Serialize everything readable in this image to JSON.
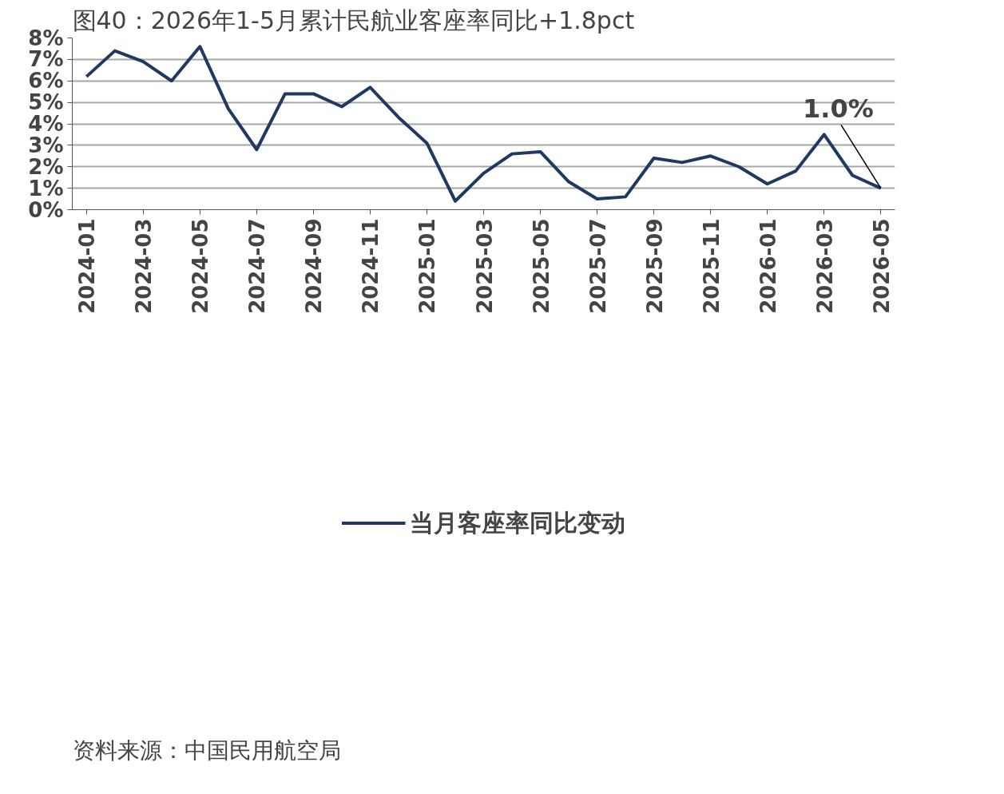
{
  "chart_data": {
    "type": "line",
    "title": "图40：2026年1-5月累计民航业客座率同比+1.8pct",
    "categories": [
      "2024-01",
      null,
      "2024-03",
      null,
      "2024-05",
      null,
      "2024-07",
      null,
      "2024-09",
      null,
      "2024-11",
      null,
      "2025-01",
      null,
      "2025-03",
      null,
      "2025-05",
      null,
      "2025-07",
      null,
      "2025-09",
      null,
      "2025-11",
      null,
      "2026-01",
      null,
      "2026-03",
      null,
      "2026-05"
    ],
    "series": [
      {
        "name": "当月客座率同比变动",
        "color": "#1f3864",
        "values": [
          6.2,
          7.4,
          6.9,
          6.0,
          7.6,
          4.7,
          2.8,
          5.4,
          5.4,
          4.8,
          5.7,
          4.3,
          3.1,
          0.4,
          1.7,
          2.6,
          2.7,
          1.3,
          0.5,
          0.6,
          2.4,
          2.2,
          2.5,
          2.0,
          1.2,
          1.8,
          3.5,
          1.6,
          1.0
        ]
      }
    ],
    "ylim": [
      0,
      8
    ],
    "yticks": [
      {
        "value": 0,
        "label": "0%"
      },
      {
        "value": 1,
        "label": "1%"
      },
      {
        "value": 2,
        "label": "2%"
      },
      {
        "value": 3,
        "label": "3%"
      },
      {
        "value": 4,
        "label": "4%"
      },
      {
        "value": 5,
        "label": "5%"
      },
      {
        "value": 6,
        "label": "6%"
      },
      {
        "value": 7,
        "label": "7%"
      },
      {
        "value": 8,
        "label": "8%"
      }
    ],
    "grid": "y",
    "legend": "bottom",
    "marker": "none",
    "line_style": "solid",
    "annotations": [
      {
        "text": "1.0%",
        "x": "2026-05",
        "y": 1.0
      },
      "资料来源：中国民用航空局"
    ]
  }
}
